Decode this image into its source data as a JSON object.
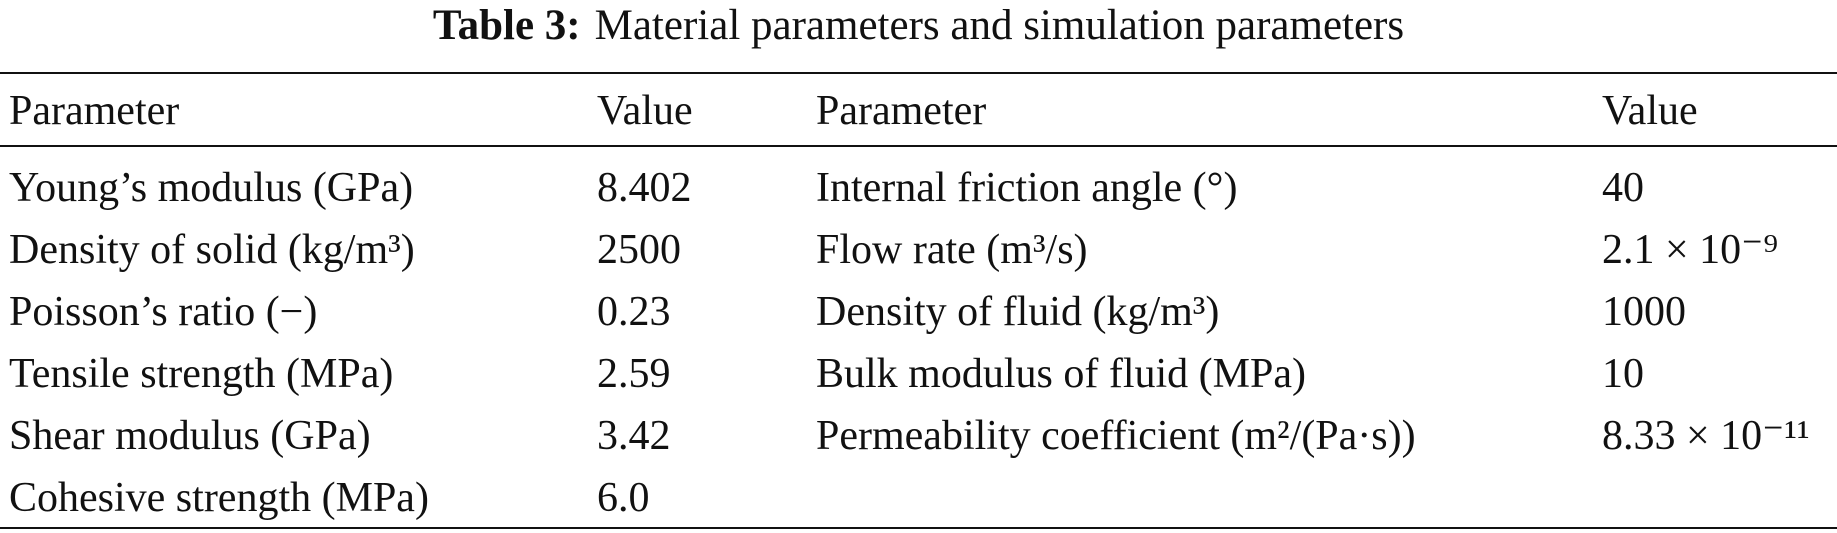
{
  "table": {
    "caption_label": "Table 3:",
    "caption": "Material parameters and simulation parameters",
    "header": [
      "Parameter",
      "Value",
      "Parameter",
      "Value"
    ],
    "rows": [
      [
        "Young’s modulus (GPa)",
        "8.402",
        "Internal friction angle (°)",
        "40"
      ],
      [
        "Density of solid (kg/m³)",
        "2500",
        "Flow rate (m³/s)",
        "2.1 × 10⁻⁹"
      ],
      [
        "Poisson’s ratio (−)",
        "0.23",
        "Density of fluid (kg/m³)",
        "1000"
      ],
      [
        "Tensile strength (MPa)",
        "2.59",
        "Bulk modulus of fluid (MPa)",
        "10"
      ],
      [
        "Shear modulus (GPa)",
        "3.42",
        "Permeability coefficient (m²/(Pa·s))",
        "8.33 × 10⁻¹¹"
      ],
      [
        "Cohesive strength (MPa)",
        "6.0"
      ]
    ]
  }
}
